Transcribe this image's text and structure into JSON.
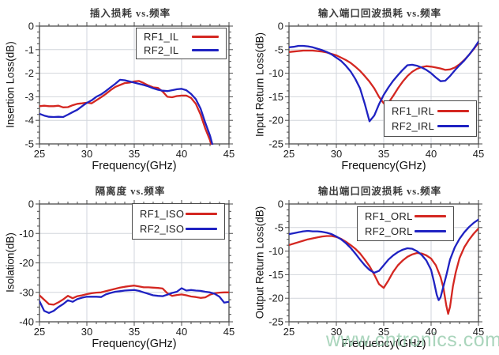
{
  "page": {
    "background": "#ffffff"
  },
  "watermark": {
    "text": "www.cntronics.com",
    "color": "#8ec7a6"
  },
  "colors": {
    "red": "#d42721",
    "blue": "#1f22c2",
    "grid": "#d2d6dc",
    "frame": "#4a4a4a",
    "tick_text": "#1c1c1c",
    "title_text": "#3a3a3a"
  },
  "chart_data": [
    {
      "id": "insertion-loss",
      "type": "line",
      "title": "插入损耗 vs.频率",
      "xlabel": "Frequency(GHz)",
      "ylabel": "Insertion Loss(dB)",
      "xlim": [
        25,
        45
      ],
      "ylim": [
        -5,
        0
      ],
      "xticks": [
        25,
        30,
        35,
        40,
        45
      ],
      "yticks": [
        0,
        -1,
        -2,
        -3,
        -4,
        -5
      ],
      "x_minor": 1,
      "y_minor_divs": 4,
      "grid": true,
      "legend_position": "top-right",
      "series": [
        {
          "name": "RF1_IL",
          "color": "red",
          "x": [
            25,
            25.5,
            26,
            26.5,
            27,
            27.5,
            28,
            28.5,
            29,
            29.5,
            30,
            30.5,
            31,
            31.5,
            32,
            32.5,
            33,
            33.5,
            34,
            34.5,
            35,
            35.5,
            36,
            36.5,
            37,
            37.5,
            38,
            38.5,
            39,
            39.5,
            40,
            40.5,
            41,
            41.5,
            42,
            42.5,
            43,
            43.5
          ],
          "y": [
            -3.4,
            -3.38,
            -3.4,
            -3.4,
            -3.38,
            -3.45,
            -3.44,
            -3.36,
            -3.3,
            -3.28,
            -3.25,
            -3.28,
            -3.15,
            -3.02,
            -2.88,
            -2.72,
            -2.58,
            -2.5,
            -2.42,
            -2.4,
            -2.35,
            -2.33,
            -2.42,
            -2.52,
            -2.6,
            -2.62,
            -2.78,
            -3.0,
            -3.02,
            -2.97,
            -2.95,
            -2.95,
            -3.05,
            -3.3,
            -3.75,
            -4.35,
            -4.85,
            -5.6
          ]
        },
        {
          "name": "RF2_IL",
          "color": "blue",
          "x": [
            25,
            25.5,
            26,
            26.5,
            27,
            27.5,
            28,
            28.5,
            29,
            29.5,
            30,
            30.5,
            31,
            31.5,
            32,
            32.5,
            33,
            33.5,
            34,
            34.5,
            35,
            35.5,
            36,
            36.5,
            37,
            37.5,
            38,
            38.5,
            39,
            39.5,
            40,
            40.5,
            41,
            41.5,
            42,
            42.5,
            43,
            43.5
          ],
          "y": [
            -3.72,
            -3.8,
            -3.85,
            -3.86,
            -3.85,
            -3.86,
            -3.76,
            -3.65,
            -3.55,
            -3.4,
            -3.26,
            -3.15,
            -3.0,
            -2.9,
            -2.76,
            -2.6,
            -2.45,
            -2.28,
            -2.3,
            -2.35,
            -2.4,
            -2.45,
            -2.5,
            -2.56,
            -2.64,
            -2.7,
            -2.74,
            -2.76,
            -2.72,
            -2.68,
            -2.66,
            -2.72,
            -2.88,
            -3.1,
            -3.5,
            -4.1,
            -4.65,
            -5.4
          ]
        }
      ]
    },
    {
      "id": "input-return-loss",
      "type": "line",
      "title": "输入端口回波损耗 vs.频率",
      "xlabel": "Frequency(GHz)",
      "ylabel": "Input Return Loss(dB)",
      "xlim": [
        25,
        45
      ],
      "ylim": [
        -25,
        0
      ],
      "xticks": [
        25,
        30,
        35,
        40,
        45
      ],
      "yticks": [
        0,
        -5,
        -10,
        -15,
        -20,
        -25
      ],
      "x_minor": 1,
      "y_minor_divs": 4,
      "grid": true,
      "legend_position": "bottom-right",
      "series": [
        {
          "name": "RF1_IRL",
          "color": "red",
          "x": [
            25,
            25.5,
            26,
            26.5,
            27,
            27.5,
            28,
            28.5,
            29,
            29.5,
            30,
            30.5,
            31,
            31.5,
            32,
            32.5,
            33,
            33.5,
            34,
            34.5,
            35,
            35.5,
            36,
            36.5,
            37,
            37.5,
            38,
            38.5,
            39,
            39.5,
            40,
            40.5,
            41,
            41.5,
            42,
            42.5,
            43,
            43.5,
            44,
            44.5,
            45
          ],
          "y": [
            -5.5,
            -5.4,
            -5.3,
            -5.2,
            -5.2,
            -5.2,
            -5.3,
            -5.4,
            -5.6,
            -5.9,
            -6.2,
            -6.7,
            -7.2,
            -7.8,
            -8.6,
            -9.5,
            -10.6,
            -11.8,
            -13.2,
            -15,
            -16.4,
            -16.3,
            -14.8,
            -13.2,
            -11.8,
            -10.6,
            -9.7,
            -9.1,
            -8.7,
            -8.5,
            -8.6,
            -8.8,
            -9,
            -9.3,
            -9.2,
            -8.8,
            -8.1,
            -7.2,
            -6.1,
            -4.9,
            -3.5
          ]
        },
        {
          "name": "RF2_IRL",
          "color": "blue",
          "x": [
            25,
            25.5,
            26,
            26.5,
            27,
            27.5,
            28,
            28.5,
            29,
            29.5,
            30,
            30.5,
            31,
            31.5,
            32,
            32.5,
            33,
            33.5,
            34,
            34.5,
            35,
            35.5,
            36,
            36.5,
            37,
            37.5,
            38,
            38.5,
            39,
            39.5,
            40,
            40.5,
            41,
            41.5,
            42,
            42.5,
            43,
            43.5,
            44,
            44.5,
            45
          ],
          "y": [
            -4.5,
            -4.4,
            -4.2,
            -4.2,
            -4.3,
            -4.5,
            -4.8,
            -5.1,
            -5.5,
            -6,
            -6.7,
            -7.4,
            -8.4,
            -9.6,
            -11.2,
            -13.2,
            -16.5,
            -20.2,
            -19,
            -16.6,
            -14.6,
            -13,
            -11.6,
            -10.4,
            -9.3,
            -8.3,
            -8.2,
            -8.4,
            -8.8,
            -9.3,
            -10,
            -10.9,
            -11.7,
            -11.6,
            -10.6,
            -9.4,
            -8.3,
            -7.3,
            -6.1,
            -4.8,
            -3.3
          ]
        }
      ]
    },
    {
      "id": "isolation",
      "type": "line",
      "title": "隔离度 vs.频率",
      "xlabel": "Frequency(GHz)",
      "ylabel": "Isolation(dB)",
      "xlim": [
        25,
        45
      ],
      "ylim": [
        -40,
        0
      ],
      "xticks": [
        25,
        30,
        35,
        40,
        45
      ],
      "yticks": [
        0,
        -10,
        -20,
        -30,
        -40
      ],
      "x_minor": 1,
      "y_minor_divs": 4,
      "grid": true,
      "legend_position": "top-right",
      "series": [
        {
          "name": "RF1_ISO",
          "color": "red",
          "x": [
            25,
            25.5,
            26,
            26.5,
            27,
            27.5,
            28,
            28.5,
            29,
            29.5,
            30,
            30.5,
            31,
            31.5,
            32,
            32.5,
            33,
            33.5,
            34,
            34.5,
            35,
            35.5,
            36,
            36.5,
            37,
            37.5,
            38,
            38.5,
            39,
            39.5,
            40,
            40.5,
            41,
            41.5,
            42,
            42.5,
            43,
            43.5,
            44,
            44.5,
            45
          ],
          "y": [
            -31,
            -32.5,
            -34,
            -34.2,
            -33.4,
            -32.4,
            -31.2,
            -32,
            -31.3,
            -31,
            -30.6,
            -30.3,
            -30.1,
            -30,
            -29.6,
            -29.2,
            -28.8,
            -28.4,
            -28.1,
            -27.9,
            -27.7,
            -28,
            -28.3,
            -28.3,
            -28.4,
            -28.5,
            -28.7,
            -30.3,
            -31.2,
            -30.9,
            -30.7,
            -31,
            -31.4,
            -31.6,
            -31.9,
            -31.7,
            -30.8,
            -30.3,
            -30.1,
            -30,
            -30
          ]
        },
        {
          "name": "RF2_ISO",
          "color": "blue",
          "x": [
            25,
            25.5,
            26,
            26.5,
            27,
            27.5,
            28,
            28.5,
            29,
            29.5,
            30,
            30.5,
            31,
            31.5,
            32,
            32.5,
            33,
            33.5,
            34,
            34.5,
            35,
            35.5,
            36,
            36.5,
            37,
            37.5,
            38,
            38.5,
            39,
            39.5,
            40,
            40.5,
            41,
            41.5,
            42,
            42.5,
            43,
            43.5,
            44,
            44.5,
            45
          ],
          "y": [
            -33,
            -36.3,
            -37,
            -36.3,
            -35,
            -34,
            -32.7,
            -33.2,
            -32.3,
            -31.8,
            -31.5,
            -31.5,
            -31.5,
            -31.6,
            -30.7,
            -30.2,
            -29.8,
            -29.6,
            -29.4,
            -29.3,
            -29.2,
            -29.5,
            -30,
            -30.5,
            -31,
            -31.2,
            -31.3,
            -30.8,
            -30.2,
            -29.8,
            -28.6,
            -29.4,
            -29.2,
            -29.4,
            -29.5,
            -29.8,
            -30,
            -30.5,
            -31.5,
            -33.5,
            -33.2
          ]
        }
      ]
    },
    {
      "id": "output-return-loss",
      "type": "line",
      "title": "输出端口回波损耗 vs.频率",
      "xlabel": "Frequency(GHz)",
      "ylabel": "Output Return Loss(dB)",
      "xlim": [
        25,
        45
      ],
      "ylim": [
        -25,
        0
      ],
      "xticks": [
        25,
        30,
        35,
        40,
        45
      ],
      "yticks": [
        0,
        -5,
        -10,
        -15,
        -20,
        -25
      ],
      "x_minor": 1,
      "y_minor_divs": 4,
      "grid": true,
      "legend_position": "top-center",
      "series": [
        {
          "name": "RF1_ORL",
          "color": "red",
          "x": [
            25,
            25.5,
            26,
            26.5,
            27,
            27.5,
            28,
            28.5,
            29,
            29.5,
            30,
            30.5,
            31,
            31.5,
            32,
            32.5,
            33,
            33.5,
            34,
            34.5,
            35,
            35.5,
            36,
            36.5,
            37,
            37.5,
            38,
            38.5,
            39,
            39.5,
            40,
            40.5,
            41,
            41.3,
            41.6,
            41.8,
            42,
            42.3,
            42.6,
            43,
            43.5,
            44,
            44.5,
            45
          ],
          "y": [
            -8.7,
            -8.4,
            -8.1,
            -7.8,
            -7.5,
            -7.3,
            -7.1,
            -6.9,
            -6.8,
            -6.8,
            -7,
            -7.4,
            -8,
            -8.7,
            -9.5,
            -10.5,
            -11.8,
            -13.2,
            -15,
            -17,
            -17.8,
            -16.2,
            -14.4,
            -13,
            -12,
            -11.2,
            -10.7,
            -10.4,
            -10.5,
            -10.9,
            -11.6,
            -13,
            -15.5,
            -17.8,
            -21.5,
            -23.3,
            -21.8,
            -17.5,
            -14.5,
            -11.5,
            -9.2,
            -7.6,
            -6.3,
            -5.2
          ]
        },
        {
          "name": "RF2_ORL",
          "color": "blue",
          "x": [
            25,
            25.5,
            26,
            26.5,
            27,
            27.5,
            28,
            28.5,
            29,
            29.5,
            30,
            30.5,
            31,
            31.5,
            32,
            32.5,
            33,
            33.5,
            34,
            34.5,
            35,
            35.5,
            36,
            36.5,
            37,
            37.5,
            38,
            38.5,
            39,
            39.5,
            40,
            40.3,
            40.6,
            40.8,
            41,
            41.3,
            41.6,
            42,
            42.5,
            43,
            43.5,
            44,
            44.5,
            45
          ],
          "y": [
            -6.4,
            -6.2,
            -6,
            -5.8,
            -5.7,
            -5.8,
            -5.8,
            -5.9,
            -6.1,
            -6.4,
            -6.9,
            -7.5,
            -8.3,
            -9.3,
            -10.5,
            -11.8,
            -13,
            -14,
            -14.6,
            -14.2,
            -13,
            -11.8,
            -10.9,
            -10.2,
            -9.7,
            -9.4,
            -9.5,
            -10,
            -10.8,
            -12,
            -14,
            -16.5,
            -19.3,
            -20.4,
            -19.8,
            -17.5,
            -15.2,
            -11.8,
            -9.2,
            -7.4,
            -6,
            -4.9,
            -4,
            -3.3
          ]
        }
      ]
    }
  ]
}
